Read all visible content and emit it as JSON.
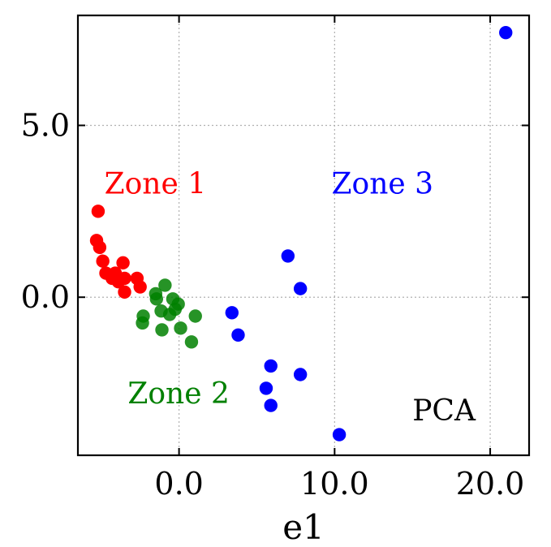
{
  "chart_data": {
    "type": "scatter",
    "title": "",
    "xlabel": "e1",
    "ylabel": "",
    "xlim": [
      -6.5,
      22.5
    ],
    "ylim": [
      -4.6,
      8.2
    ],
    "grid": true,
    "grid_style": "dotted",
    "xticks": [
      0,
      10,
      20
    ],
    "xtick_labels": [
      "0.0",
      "10.0",
      "20.0"
    ],
    "yticks": [
      0,
      5
    ],
    "ytick_labels": [
      "0.0",
      "5.0"
    ],
    "series": [
      {
        "color": "#ff0000",
        "points": [
          [
            -5.2,
            2.5
          ],
          [
            -5.3,
            1.65
          ],
          [
            -5.1,
            1.45
          ],
          [
            -4.9,
            1.05
          ],
          [
            -4.7,
            0.7
          ],
          [
            -4.3,
            0.55
          ],
          [
            -4.1,
            0.7
          ],
          [
            -3.9,
            0.45
          ],
          [
            -3.6,
            1.0
          ],
          [
            -3.5,
            0.55
          ],
          [
            -3.5,
            0.15
          ],
          [
            -2.7,
            0.55
          ],
          [
            -2.5,
            0.3
          ]
        ]
      },
      {
        "color": "#008000",
        "points": [
          [
            -2.3,
            -0.55
          ],
          [
            -2.35,
            -0.75
          ],
          [
            -1.5,
            0.1
          ],
          [
            -1.45,
            -0.05
          ],
          [
            -1.15,
            -0.4
          ],
          [
            -0.9,
            0.35
          ],
          [
            -0.6,
            -0.5
          ],
          [
            -0.4,
            -0.05
          ],
          [
            -0.25,
            -0.35
          ],
          [
            -0.05,
            -0.2
          ],
          [
            0.1,
            -0.9
          ],
          [
            -1.1,
            -0.95
          ],
          [
            1.05,
            -0.55
          ],
          [
            0.8,
            -1.3
          ]
        ]
      },
      {
        "color": "#0000ff",
        "points": [
          [
            3.4,
            -0.45
          ],
          [
            3.8,
            -1.1
          ],
          [
            7.0,
            1.2
          ],
          [
            7.8,
            0.25
          ],
          [
            5.9,
            -2.0
          ],
          [
            7.8,
            -2.25
          ],
          [
            5.6,
            -2.65
          ],
          [
            5.9,
            -3.15
          ],
          [
            10.3,
            -4.0
          ],
          [
            21.0,
            7.7
          ]
        ]
      }
    ],
    "annotations": [
      {
        "text": "Zone 1",
        "x": -4.8,
        "y": 3.3,
        "color": "#ff0000"
      },
      {
        "text": "Zone 2",
        "x": -3.3,
        "y": -2.8,
        "color": "#008000"
      },
      {
        "text": "Zone 3",
        "x": 9.8,
        "y": 3.3,
        "color": "#0000ff"
      },
      {
        "text": "PCA",
        "x": 15.0,
        "y": -3.3,
        "color": "#000000"
      }
    ]
  }
}
